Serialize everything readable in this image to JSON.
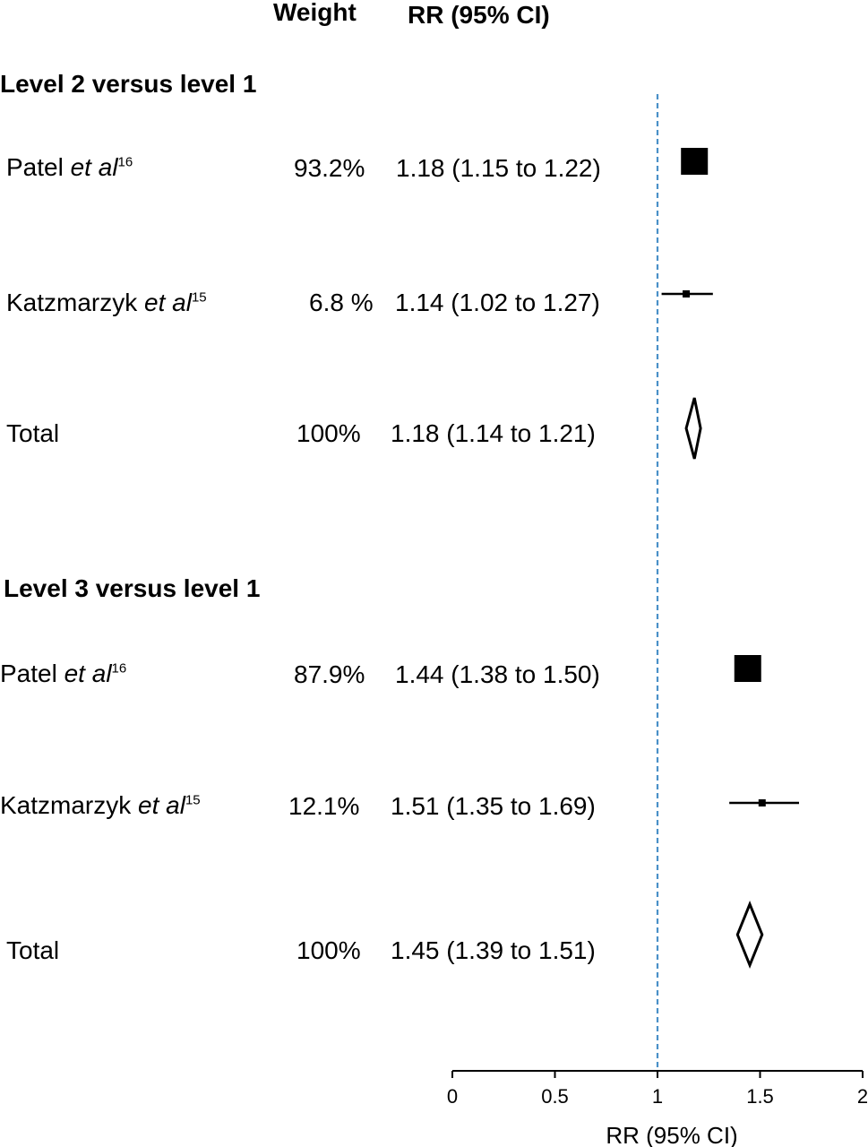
{
  "headers": {
    "weight": "Weight",
    "rr": "RR (95% CI)"
  },
  "chart_data": {
    "type": "forest",
    "xlabel": "RR (95% CI)",
    "xlim": [
      0,
      2
    ],
    "ticks": [
      "0",
      "0.5",
      "1",
      "1.5",
      "2"
    ],
    "reference_line": 1,
    "reference_color": "#4a90c8",
    "groups": [
      {
        "title": "Level 2 versus level 1",
        "rows": [
          {
            "name": "Patel ",
            "etal": "et al",
            "ref": "16",
            "weight": "93.2%",
            "label": "1.18 (1.15 to 1.22)",
            "rr": 1.18,
            "low": 1.15,
            "high": 1.22,
            "kind": "study",
            "w": 93.2
          },
          {
            "name": "Katzmarzyk ",
            "etal": "et al",
            "ref": "15",
            "weight": "6.8 %",
            "label": "1.14 (1.02 to 1.27)",
            "rr": 1.14,
            "low": 1.02,
            "high": 1.27,
            "kind": "study",
            "w": 6.8
          },
          {
            "name": "Total",
            "etal": "",
            "ref": "",
            "weight": "100%",
            "label": "1.18 (1.14 to 1.21)",
            "rr": 1.18,
            "low": 1.14,
            "high": 1.21,
            "kind": "total"
          }
        ]
      },
      {
        "title": "Level 3 versus level 1",
        "rows": [
          {
            "name": "Patel ",
            "etal": "et al",
            "ref": "16",
            "weight": "87.9%",
            "label": "1.44 (1.38 to 1.50)",
            "rr": 1.44,
            "low": 1.38,
            "high": 1.5,
            "kind": "study",
            "w": 87.9
          },
          {
            "name": "Katzmarzyk ",
            "etal": "et al",
            "ref": "15",
            "weight": "12.1%",
            "label": "1.51 (1.35 to 1.69)",
            "rr": 1.51,
            "low": 1.35,
            "high": 1.69,
            "kind": "study",
            "w": 12.1
          },
          {
            "name": "Total",
            "etal": "",
            "ref": "",
            "weight": "100%",
            "label": "1.45 (1.39 to 1.51)",
            "rr": 1.45,
            "low": 1.39,
            "high": 1.51,
            "kind": "total"
          }
        ]
      }
    ]
  }
}
